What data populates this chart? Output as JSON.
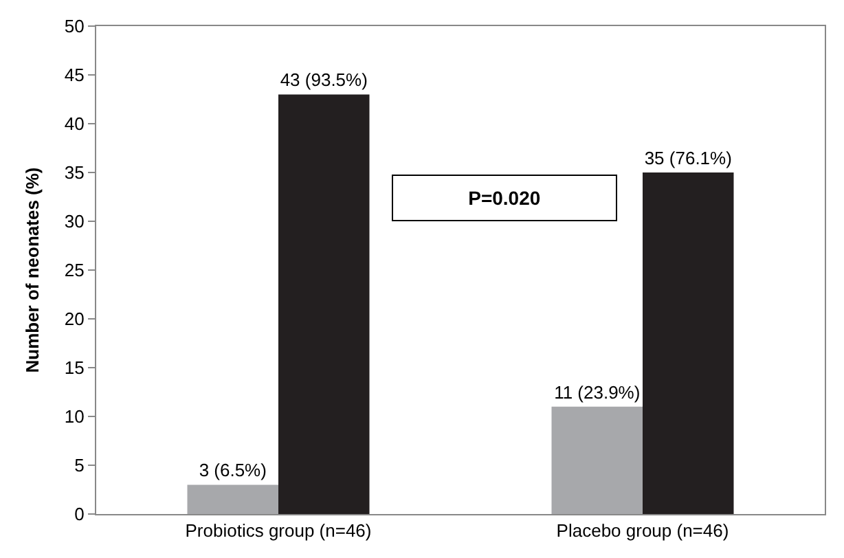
{
  "chart_data": {
    "type": "bar",
    "ylabel": "Number of neonates (%)",
    "categories": [
      "Probiotics group (n=46)",
      "Placebo group (n=46)"
    ],
    "series": [
      {
        "color": "#a7a8ab",
        "values": [
          3,
          11
        ],
        "value_labels": [
          "3 (6.5%)",
          "11 (23.9%)"
        ]
      },
      {
        "color": "#231f20",
        "values": [
          43,
          35
        ],
        "value_labels": [
          "43 (93.5%)",
          "35 (76.1%)"
        ]
      }
    ],
    "ylim": [
      0,
      50
    ],
    "yticks": [
      0,
      5,
      10,
      15,
      20,
      25,
      30,
      35,
      40,
      45,
      50
    ],
    "legend": false,
    "annotations": [
      "P=0.020"
    ]
  }
}
